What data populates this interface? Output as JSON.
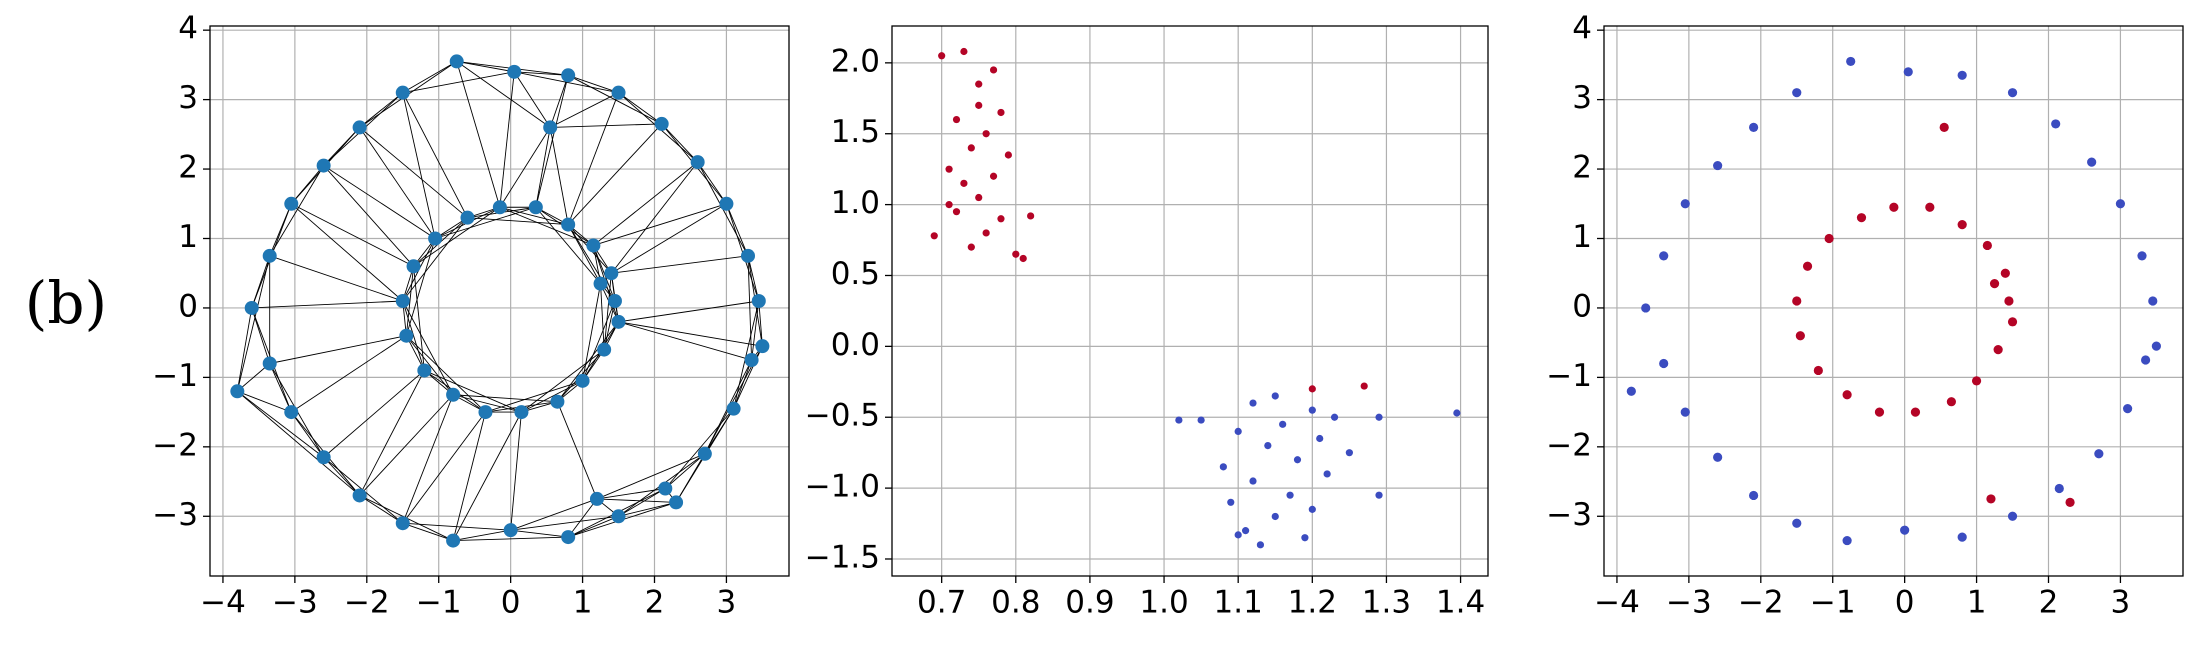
{
  "panel_label": "(b)",
  "chart_data": [
    {
      "type": "graph",
      "grid": true,
      "xlim": [
        -4.18,
        3.87
      ],
      "ylim": [
        -3.86,
        4.06
      ],
      "xticks": [
        {
          "value": -4,
          "label": "−4"
        },
        {
          "value": -3,
          "label": "−3"
        },
        {
          "value": -2,
          "label": "−2"
        },
        {
          "value": -1,
          "label": "−1"
        },
        0,
        1,
        2,
        3
      ],
      "yticks": [
        {
          "value": -3,
          "label": "−3"
        },
        {
          "value": -2,
          "label": "−2"
        },
        {
          "value": -1,
          "label": "−1"
        },
        0,
        1,
        2,
        3,
        4
      ],
      "series": [
        {
          "color": "#1f77b4",
          "x": [
            3.45,
            3.3,
            3.0,
            2.6,
            2.1,
            1.5,
            0.8,
            0.05,
            -0.75,
            -1.5,
            -2.1,
            -2.6,
            -3.05,
            -3.35,
            -3.6,
            -3.35,
            -3.05,
            -2.6,
            -2.1,
            -1.5,
            -0.8,
            0.0,
            0.8,
            1.5,
            2.15,
            2.7,
            3.1,
            3.35,
            -3.8,
            3.5,
            0.55,
            2.3,
            1.2,
            1.45,
            1.4,
            1.15,
            0.8,
            0.35,
            -0.15,
            -0.6,
            -1.05,
            -1.35,
            -1.5,
            -1.45,
            -1.2,
            -0.8,
            -0.35,
            0.15,
            0.65,
            1.0,
            1.3,
            1.5,
            1.25
          ],
          "y": [
            0.1,
            0.75,
            1.5,
            2.1,
            2.65,
            3.1,
            3.35,
            3.4,
            3.55,
            3.1,
            2.6,
            2.05,
            1.5,
            0.75,
            0.0,
            -0.8,
            -1.5,
            -2.15,
            -2.7,
            -3.1,
            -3.35,
            -3.2,
            -3.3,
            -3.0,
            -2.6,
            -2.1,
            -1.45,
            -0.75,
            -1.2,
            -0.55,
            2.6,
            -2.8,
            -2.75,
            0.1,
            0.5,
            0.9,
            1.2,
            1.45,
            1.45,
            1.3,
            1.0,
            0.6,
            0.1,
            -0.4,
            -0.9,
            -1.25,
            -1.5,
            -1.5,
            -1.35,
            -1.05,
            -0.6,
            -0.2,
            0.35
          ]
        }
      ]
    },
    {
      "type": "scatter",
      "grid": true,
      "xlim": [
        0.633,
        1.437
      ],
      "ylim": [
        -1.62,
        2.26
      ],
      "xticks": [
        0.7,
        0.8,
        0.9,
        {
          "value": 1.0,
          "label": "1.0"
        },
        1.1,
        1.2,
        1.3,
        1.4
      ],
      "yticks": [
        {
          "value": -1.5,
          "label": "−1.5"
        },
        {
          "value": -1.0,
          "label": "−1.0"
        },
        {
          "value": -0.5,
          "label": "−0.5"
        },
        {
          "value": 0.0,
          "label": "0.0"
        },
        0.5,
        {
          "value": 1.0,
          "label": "1.0"
        },
        1.5,
        {
          "value": 2.0,
          "label": "2.0"
        }
      ],
      "series": [
        {
          "color": "#b40426",
          "x": [
            0.69,
            0.7,
            0.71,
            0.72,
            0.72,
            0.73,
            0.74,
            0.74,
            0.75,
            0.75,
            0.76,
            0.76,
            0.77,
            0.77,
            0.78,
            0.78,
            0.79,
            0.8,
            0.81,
            0.82,
            0.73,
            0.75,
            0.71,
            1.27,
            1.2
          ],
          "y": [
            0.78,
            2.05,
            1.25,
            1.6,
            0.95,
            2.08,
            1.4,
            0.7,
            1.85,
            1.05,
            1.5,
            0.8,
            1.2,
            1.95,
            0.9,
            1.65,
            1.35,
            0.65,
            0.62,
            0.92,
            1.15,
            1.7,
            1.0,
            -0.28,
            -0.3
          ]
        },
        {
          "color": "#3b4cc0",
          "x": [
            1.02,
            1.05,
            1.08,
            1.09,
            1.1,
            1.11,
            1.12,
            1.12,
            1.13,
            1.14,
            1.15,
            1.15,
            1.16,
            1.17,
            1.18,
            1.19,
            1.2,
            1.2,
            1.21,
            1.22,
            1.23,
            1.25,
            1.29,
            1.29,
            1.395,
            1.1
          ],
          "y": [
            -0.52,
            -0.52,
            -0.85,
            -1.1,
            -0.6,
            -1.3,
            -0.4,
            -0.95,
            -1.4,
            -0.7,
            -1.2,
            -0.35,
            -0.55,
            -1.05,
            -0.8,
            -1.35,
            -0.45,
            -1.15,
            -0.65,
            -0.9,
            -0.5,
            -0.75,
            -0.5,
            -1.05,
            -0.47,
            -1.33
          ]
        }
      ]
    },
    {
      "type": "scatter",
      "grid": true,
      "xlim": [
        -4.18,
        3.87
      ],
      "ylim": [
        -3.86,
        4.06
      ],
      "xticks": [
        {
          "value": -4,
          "label": "−4"
        },
        {
          "value": -3,
          "label": "−3"
        },
        {
          "value": -2,
          "label": "−2"
        },
        {
          "value": -1,
          "label": "−1"
        },
        0,
        1,
        2,
        3
      ],
      "yticks": [
        {
          "value": -3,
          "label": "−3"
        },
        {
          "value": -2,
          "label": "−2"
        },
        {
          "value": -1,
          "label": "−1"
        },
        0,
        1,
        2,
        3,
        4
      ],
      "series": [
        {
          "color": "#3b4cc0",
          "x": [
            3.45,
            3.3,
            3.0,
            2.6,
            2.1,
            1.5,
            0.8,
            0.05,
            -0.75,
            -1.5,
            -2.1,
            -2.6,
            -3.05,
            -3.35,
            -3.6,
            -3.35,
            -3.05,
            -2.6,
            -2.1,
            -1.5,
            -0.8,
            0.0,
            0.8,
            1.5,
            2.15,
            2.7,
            3.1,
            3.35,
            -3.8,
            3.5
          ],
          "y": [
            0.1,
            0.75,
            1.5,
            2.1,
            2.65,
            3.1,
            3.35,
            3.4,
            3.55,
            3.1,
            2.6,
            2.05,
            1.5,
            0.75,
            0.0,
            -0.8,
            -1.5,
            -2.15,
            -2.7,
            -3.1,
            -3.35,
            -3.2,
            -3.3,
            -3.0,
            -2.6,
            -2.1,
            -1.45,
            -0.75,
            -1.2,
            -0.55
          ]
        },
        {
          "color": "#b40426",
          "x": [
            0.55,
            2.3,
            1.2,
            1.45,
            1.4,
            1.15,
            0.8,
            0.35,
            -0.15,
            -0.6,
            -1.05,
            -1.35,
            -1.5,
            -1.45,
            -1.2,
            -0.8,
            -0.35,
            0.15,
            0.65,
            1.0,
            1.3,
            1.5,
            1.25
          ],
          "y": [
            2.6,
            -2.8,
            -2.75,
            0.1,
            0.5,
            0.9,
            1.2,
            1.45,
            1.45,
            1.3,
            1.0,
            0.6,
            0.1,
            -0.4,
            -0.9,
            -1.25,
            -1.5,
            -1.5,
            -1.35,
            -1.05,
            -0.6,
            -0.2,
            0.35
          ]
        }
      ]
    }
  ]
}
